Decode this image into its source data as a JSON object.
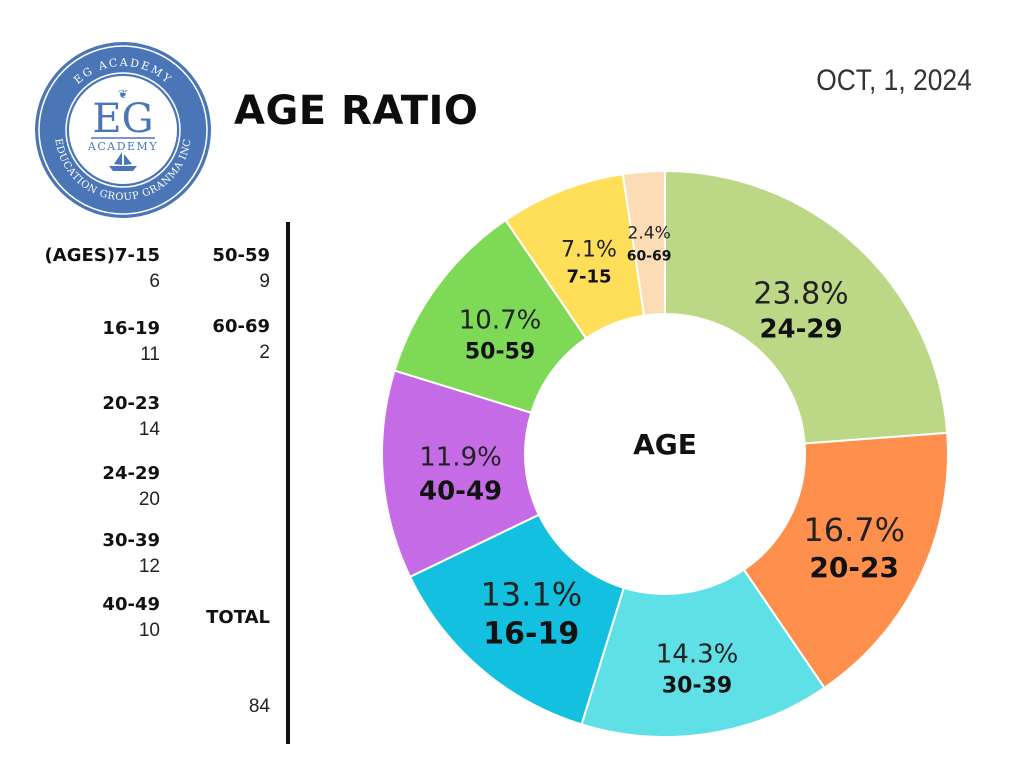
{
  "header": {
    "title": "AGE RATIO",
    "date": "OCT, 1, 2024"
  },
  "logo": {
    "monogram": "EG",
    "name": "ACADEMY",
    "arc_top": "EG ACADEMY",
    "arc_bottom": "EDUCATION GROUP GRANMA INC"
  },
  "legend": {
    "col1": [
      {
        "label": "(AGES)7-15",
        "count": "6"
      },
      {
        "label": "16-19",
        "count": "11"
      },
      {
        "label": "20-23",
        "count": "14"
      },
      {
        "label": "24-29",
        "count": "20"
      },
      {
        "label": "30-39",
        "count": "12"
      },
      {
        "label": "40-49",
        "count": "10"
      }
    ],
    "col2": [
      {
        "label": "50-59",
        "count": "9"
      },
      {
        "label": "60-69",
        "count": "2"
      }
    ],
    "total_label": "TOTAL",
    "total_value": "84"
  },
  "chart_data": {
    "type": "pie",
    "donut": true,
    "center_label": "AGE",
    "categories": [
      "24-29",
      "20-23",
      "30-39",
      "16-19",
      "40-49",
      "50-59",
      "7-15",
      "60-69"
    ],
    "values": [
      20,
      14,
      12,
      11,
      10,
      9,
      6,
      2
    ],
    "percent_labels": [
      "23.8%",
      "16.7%",
      "14.3%",
      "13.1%",
      "11.9%",
      "10.7%",
      "7.1%",
      "2.4%"
    ],
    "colors": [
      "#bcd886",
      "#ff8f4c",
      "#5fe0e6",
      "#13c0e0",
      "#c56be6",
      "#7ed957",
      "#ffde59",
      "#fbdcb4"
    ],
    "legend": "left"
  }
}
